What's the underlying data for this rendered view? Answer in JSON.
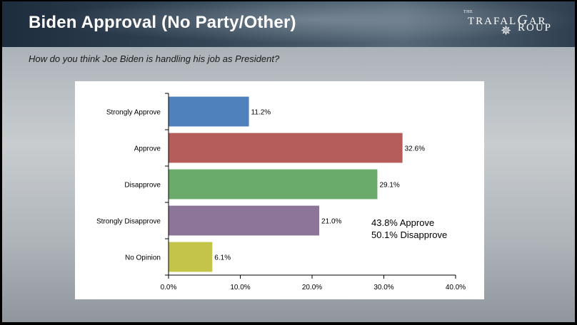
{
  "slide": {
    "title": "Biden Approval (No Party/Other)",
    "question": "How do you think Joe Biden is handling his job as President?",
    "logo": {
      "the": "THE",
      "line1": "TRAFAL",
      "line1b": "G",
      "line1c": "AR",
      "line2": "ROUP"
    },
    "summary": [
      "43.8% Approve",
      "50.1% Disapprove"
    ]
  },
  "colors": {
    "strongly_approve": "#4f81bd",
    "approve": "#b55d5a",
    "disapprove": "#6aaa6a",
    "strongly_disapprove": "#8c7597",
    "no_opinion": "#c4c44a"
  },
  "chart_data": {
    "type": "bar",
    "orientation": "horizontal",
    "categories": [
      "Strongly Approve",
      "Approve",
      "Disapprove",
      "Strongly Disapprove",
      "No Opinion"
    ],
    "values": [
      11.2,
      32.6,
      29.1,
      21.0,
      6.1
    ],
    "value_labels": [
      "11.2%",
      "32.6%",
      "29.1%",
      "21.0%",
      "6.1%"
    ],
    "bar_colors": [
      "#4f81bd",
      "#b55d5a",
      "#6aaa6a",
      "#8c7597",
      "#c4c44a"
    ],
    "xlim": [
      0,
      40
    ],
    "xticks": [
      0,
      10,
      20,
      30,
      40
    ],
    "xtick_labels": [
      "0.0%",
      "10.0%",
      "20.0%",
      "30.0%",
      "40.0%"
    ],
    "grid": false,
    "legend": "none"
  }
}
